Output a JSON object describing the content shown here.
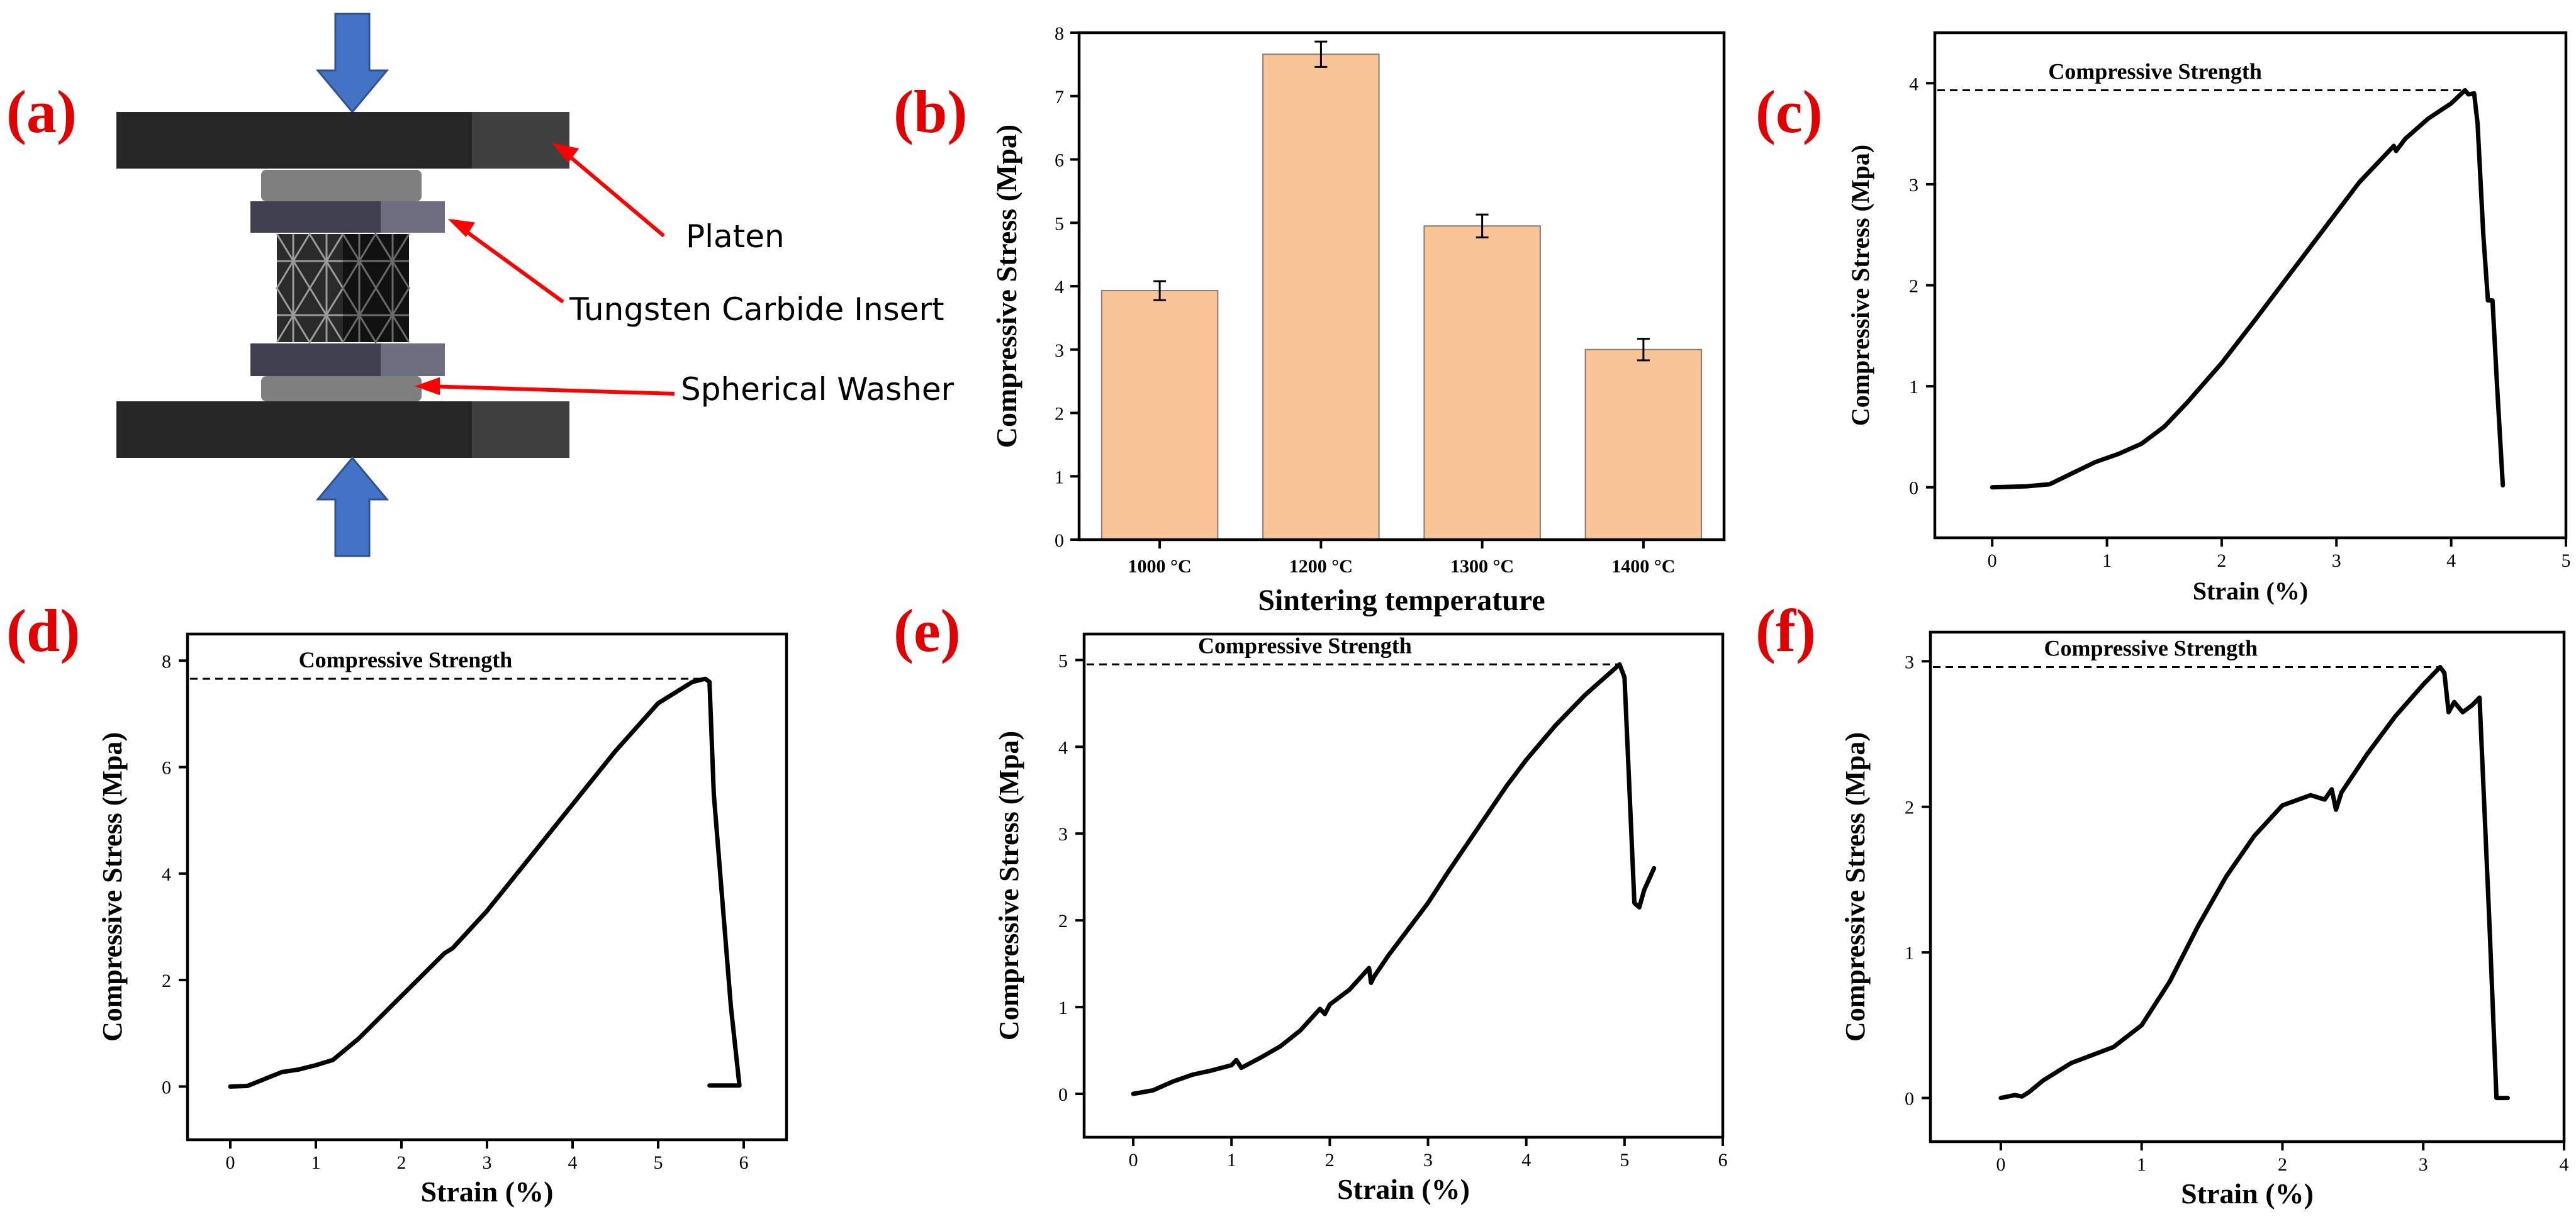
{
  "panels": {
    "a": {
      "letter": "(a)",
      "labels": {
        "platen": "Platen",
        "insert": "Tungsten Carbide Insert",
        "washer": "Spherical Washer"
      },
      "colors": {
        "platen": "#262626",
        "platen_edge": "#404040",
        "washer": "#7f7f7f",
        "insert": "#404050",
        "insert_edge": "#6d6d80",
        "arrow": "#4472c4",
        "callout": "#ff0000"
      }
    },
    "b": {
      "letter": "(b)"
    },
    "c": {
      "letter": "(c)"
    },
    "d": {
      "letter": "(d)"
    },
    "e": {
      "letter": "(e)"
    },
    "f": {
      "letter": "(f)"
    }
  },
  "chart_data": [
    {
      "id": "b",
      "type": "bar",
      "xlabel": "Sintering temperature",
      "ylabel": "Compressive Stress (Mpa)",
      "categories": [
        "1000 °C",
        "1200 °C",
        "1300 °C",
        "1400 °C"
      ],
      "values": [
        3.93,
        7.66,
        4.95,
        3.0
      ],
      "errors": [
        0.15,
        0.2,
        0.18,
        0.17
      ],
      "ylim": [
        0,
        8
      ],
      "yticks": [
        0,
        1,
        2,
        3,
        4,
        5,
        6,
        7,
        8
      ],
      "bar_color": "#fac596"
    },
    {
      "id": "c",
      "type": "line",
      "xlabel": "Strain (%)",
      "ylabel": "Compressive Stress (Mpa)",
      "annotation": "Compressive Strength",
      "strength": 3.93,
      "xlim": [
        -0.5,
        5
      ],
      "ylim": [
        -0.5,
        4.5
      ],
      "xticks": [
        0,
        1,
        2,
        3,
        4,
        5
      ],
      "yticks": [
        0,
        1,
        2,
        3,
        4
      ],
      "x": [
        0,
        0.3,
        0.5,
        0.7,
        0.9,
        1.1,
        1.3,
        1.5,
        1.7,
        2.0,
        2.3,
        2.6,
        2.9,
        3.2,
        3.5,
        3.52,
        3.6,
        3.8,
        4.0,
        4.12,
        4.15,
        4.2,
        4.23,
        4.28,
        4.32,
        4.36,
        4.4,
        4.45
      ],
      "y": [
        0,
        0.01,
        0.03,
        0.14,
        0.25,
        0.33,
        0.43,
        0.6,
        0.84,
        1.23,
        1.67,
        2.12,
        2.57,
        3.02,
        3.38,
        3.33,
        3.45,
        3.65,
        3.8,
        3.93,
        3.89,
        3.9,
        3.6,
        2.5,
        1.85,
        1.85,
        1.0,
        0.02
      ]
    },
    {
      "id": "d",
      "type": "line",
      "xlabel": "Strain (%)",
      "ylabel": "Compressive Stress (Mpa)",
      "annotation": "Compressive Strength",
      "strength": 7.66,
      "xlim": [
        -0.5,
        6.5
      ],
      "ylim": [
        -1,
        8.5
      ],
      "xticks": [
        0,
        1,
        2,
        3,
        4,
        5,
        6
      ],
      "yticks": [
        0,
        2,
        4,
        6,
        8
      ],
      "x": [
        0,
        0.2,
        0.4,
        0.6,
        0.8,
        1.0,
        1.2,
        1.5,
        2.0,
        2.5,
        2.6,
        3.0,
        3.5,
        4.0,
        4.5,
        5.0,
        5.4,
        5.55,
        5.6,
        5.65,
        5.75,
        5.85,
        5.95,
        5.6
      ],
      "y": [
        0,
        0.01,
        0.14,
        0.27,
        0.32,
        0.4,
        0.5,
        0.9,
        1.7,
        2.5,
        2.6,
        3.3,
        4.3,
        5.3,
        6.3,
        7.2,
        7.6,
        7.66,
        7.6,
        5.5,
        3.5,
        1.5,
        0.02,
        0.02
      ]
    },
    {
      "id": "e",
      "type": "line",
      "xlabel": "Strain (%)",
      "ylabel": "Compressive Stress (Mpa)",
      "annotation": "Compressive Strength",
      "strength": 4.95,
      "xlim": [
        -0.5,
        6
      ],
      "ylim": [
        -0.5,
        5.3
      ],
      "xticks": [
        0,
        1,
        2,
        3,
        4,
        5,
        6
      ],
      "yticks": [
        0,
        1,
        2,
        3,
        4,
        5
      ],
      "x": [
        0,
        0.2,
        0.4,
        0.6,
        0.8,
        1.0,
        1.05,
        1.1,
        1.3,
        1.5,
        1.7,
        1.9,
        1.95,
        2.0,
        2.2,
        2.4,
        2.42,
        2.45,
        2.6,
        2.8,
        3.0,
        3.2,
        3.5,
        3.8,
        4.0,
        4.3,
        4.6,
        4.85,
        4.95,
        5.0,
        5.05,
        5.1,
        5.15,
        5.2,
        5.3
      ],
      "y": [
        0,
        0.04,
        0.14,
        0.22,
        0.27,
        0.33,
        0.39,
        0.3,
        0.42,
        0.55,
        0.73,
        0.98,
        0.92,
        1.03,
        1.2,
        1.45,
        1.28,
        1.35,
        1.6,
        1.9,
        2.2,
        2.55,
        3.05,
        3.55,
        3.85,
        4.25,
        4.6,
        4.85,
        4.95,
        4.8,
        3.5,
        2.2,
        2.15,
        2.35,
        2.6
      ]
    },
    {
      "id": "f",
      "type": "line",
      "xlabel": "Strain (%)",
      "ylabel": "Compressive Stress (Mpa)",
      "annotation": "Compressive Strength",
      "strength": 2.96,
      "xlim": [
        -0.5,
        4
      ],
      "ylim": [
        -0.3,
        3.2
      ],
      "xticks": [
        0,
        1,
        2,
        3,
        4
      ],
      "yticks": [
        0,
        1,
        2,
        3
      ],
      "x": [
        0,
        0.1,
        0.15,
        0.2,
        0.3,
        0.5,
        0.8,
        1.0,
        1.2,
        1.4,
        1.6,
        1.8,
        2.0,
        2.2,
        2.3,
        2.35,
        2.38,
        2.42,
        2.6,
        2.8,
        3.0,
        3.12,
        3.15,
        3.18,
        3.22,
        3.28,
        3.35,
        3.4,
        3.47,
        3.52,
        3.6
      ],
      "y": [
        0,
        0.02,
        0.01,
        0.04,
        0.12,
        0.24,
        0.35,
        0.5,
        0.8,
        1.18,
        1.52,
        1.8,
        2.01,
        2.08,
        2.05,
        2.12,
        1.98,
        2.1,
        2.36,
        2.62,
        2.84,
        2.96,
        2.92,
        2.65,
        2.72,
        2.65,
        2.7,
        2.75,
        1.2,
        0.0,
        0.0
      ]
    }
  ]
}
